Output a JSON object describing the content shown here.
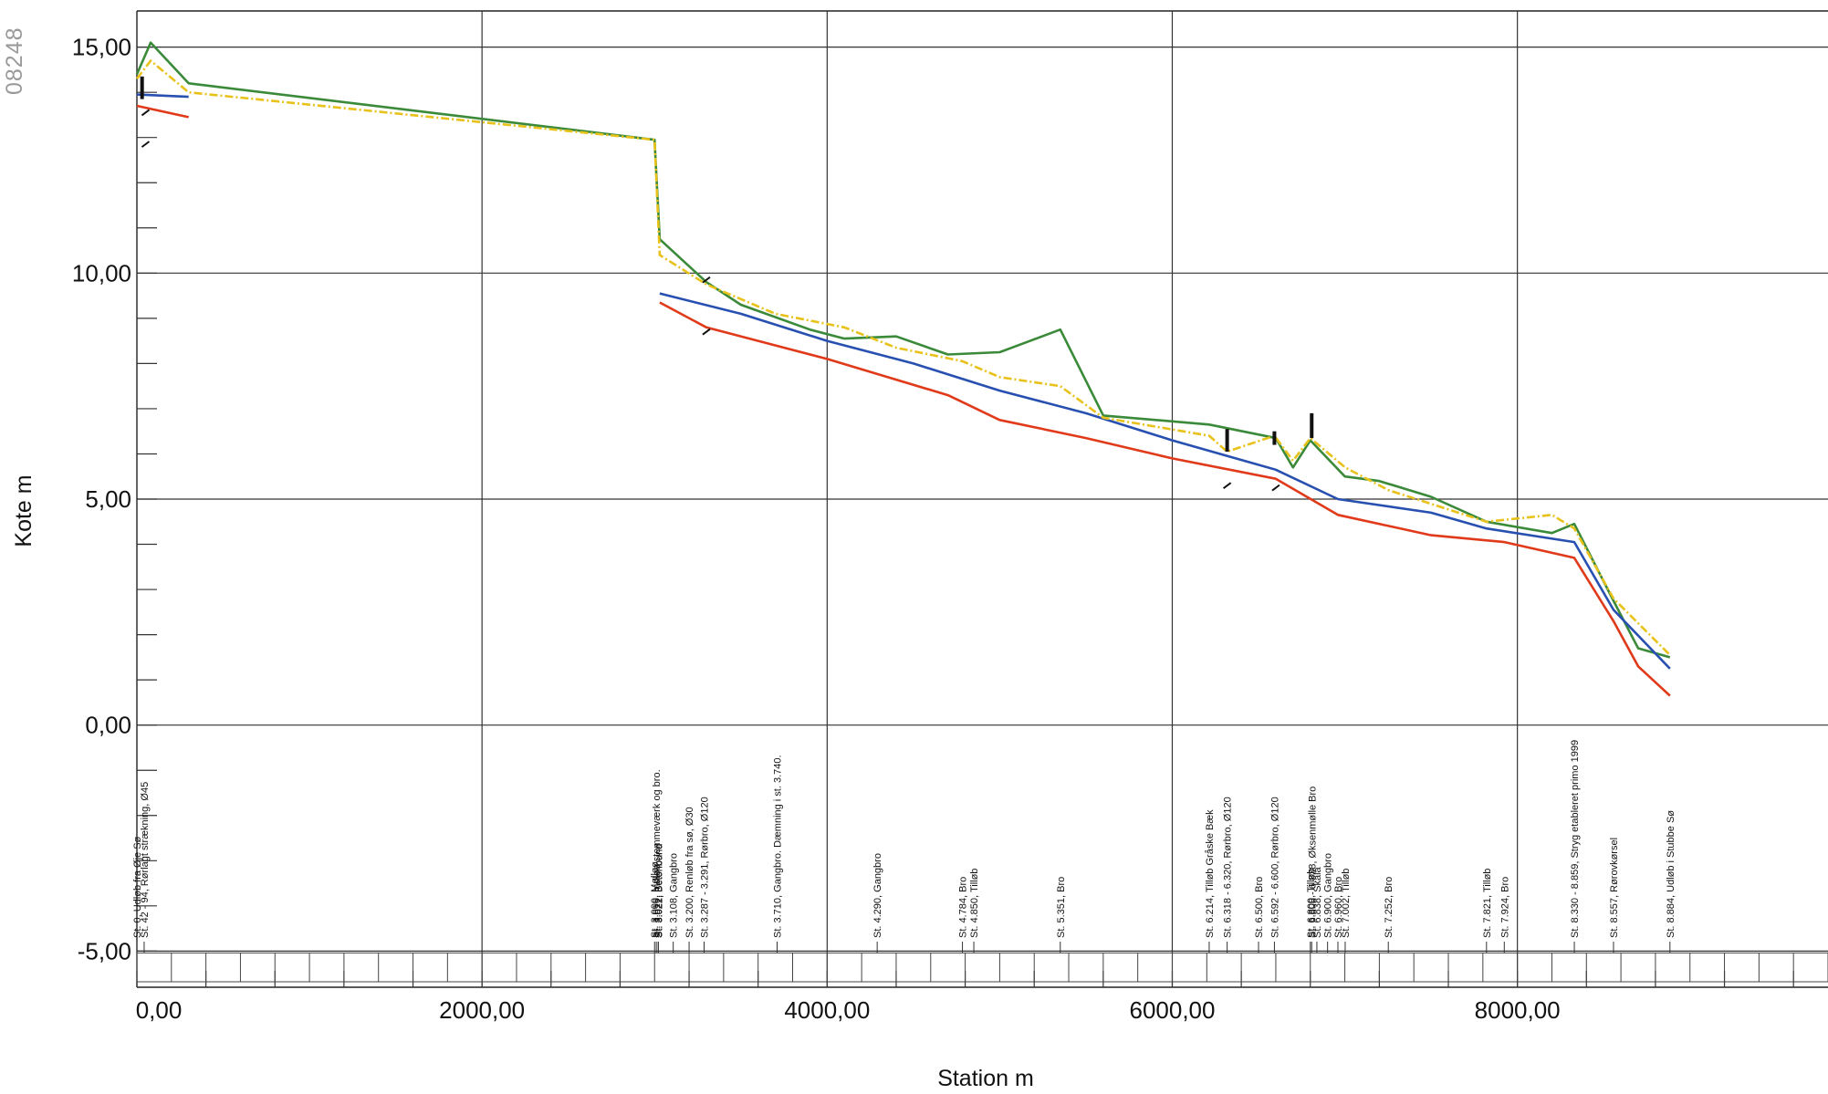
{
  "stamp": "08248",
  "chart_data": {
    "type": "line",
    "title": "",
    "xlabel": "Station m",
    "ylabel": "Kote m",
    "xlim": [
      0,
      9800
    ],
    "ylim": [
      -5.8,
      15.8
    ],
    "grid": true,
    "x_ticks": [
      0,
      2000,
      4000,
      6000,
      8000
    ],
    "x_tick_labels": [
      "0,00",
      "2000,00",
      "4000,00",
      "6000,00",
      "8000,00"
    ],
    "y_ticks": [
      -5,
      0,
      5,
      10,
      15
    ],
    "y_tick_labels": [
      "-5,00",
      "0,00",
      "5,00",
      "10,00",
      "15,00"
    ],
    "series": [
      {
        "color": "#3a8a3a",
        "segments": [
          [
            [
              0,
              14.4
            ],
            [
              80,
              15.1
            ],
            [
              300,
              14.2
            ],
            [
              3000,
              12.95
            ],
            [
              3030,
              10.75
            ],
            [
              3300,
              9.8
            ],
            [
              3500,
              9.3
            ],
            [
              3900,
              8.75
            ],
            [
              4100,
              8.55
            ],
            [
              4400,
              8.6
            ],
            [
              4700,
              8.2
            ],
            [
              5000,
              8.25
            ],
            [
              5351,
              8.75
            ],
            [
              5600,
              6.85
            ],
            [
              6214,
              6.65
            ],
            [
              6600,
              6.35
            ],
            [
              6700,
              5.7
            ],
            [
              6800,
              6.3
            ],
            [
              7000,
              5.5
            ],
            [
              7200,
              5.4
            ],
            [
              7500,
              5.05
            ],
            [
              7821,
              4.5
            ],
            [
              8200,
              4.25
            ],
            [
              8330,
              4.45
            ],
            [
              8557,
              2.75
            ],
            [
              8700,
              1.7
            ],
            [
              8884,
              1.5
            ]
          ]
        ]
      },
      {
        "color": "#2850b0",
        "segments": [
          [
            [
              0,
              13.95
            ],
            [
              300,
              13.9
            ]
          ],
          [
            [
              3030,
              9.55
            ],
            [
              3500,
              9.1
            ],
            [
              4000,
              8.5
            ],
            [
              4500,
              8.0
            ],
            [
              5000,
              7.4
            ],
            [
              5500,
              6.9
            ],
            [
              6000,
              6.3
            ],
            [
              6600,
              5.65
            ],
            [
              6960,
              5.0
            ],
            [
              7500,
              4.7
            ],
            [
              7821,
              4.35
            ],
            [
              8330,
              4.05
            ],
            [
              8557,
              2.55
            ],
            [
              8884,
              1.25
            ]
          ]
        ]
      },
      {
        "color": "#e03a1a",
        "segments": [
          [
            [
              0,
              13.7
            ],
            [
              300,
              13.45
            ]
          ],
          [
            [
              3030,
              9.35
            ],
            [
              3300,
              8.8
            ],
            [
              4000,
              8.1
            ],
            [
              4700,
              7.3
            ],
            [
              5000,
              6.75
            ],
            [
              5500,
              6.35
            ],
            [
              6000,
              5.9
            ],
            [
              6600,
              5.45
            ],
            [
              6960,
              4.65
            ],
            [
              7500,
              4.2
            ],
            [
              7924,
              4.05
            ],
            [
              8330,
              3.7
            ],
            [
              8557,
              2.3
            ],
            [
              8700,
              1.3
            ],
            [
              8884,
              0.65
            ]
          ]
        ]
      },
      {
        "color": "#e8c21a",
        "dashed": true,
        "segments": [
          [
            [
              0,
              14.3
            ],
            [
              80,
              14.7
            ],
            [
              300,
              14.0
            ],
            [
              3000,
              12.95
            ],
            [
              3030,
              10.4
            ],
            [
              3300,
              9.75
            ],
            [
              3700,
              9.1
            ],
            [
              4100,
              8.8
            ],
            [
              4400,
              8.35
            ],
            [
              4784,
              8.05
            ],
            [
              5000,
              7.7
            ],
            [
              5351,
              7.5
            ],
            [
              5600,
              6.8
            ],
            [
              6214,
              6.4
            ],
            [
              6318,
              6.05
            ],
            [
              6592,
              6.4
            ],
            [
              6700,
              5.85
            ],
            [
              6800,
              6.35
            ],
            [
              7002,
              5.7
            ],
            [
              7252,
              5.2
            ],
            [
              7821,
              4.5
            ],
            [
              8200,
              4.65
            ],
            [
              8330,
              4.35
            ],
            [
              8557,
              2.8
            ],
            [
              8884,
              1.55
            ]
          ]
        ]
      }
    ],
    "bars": [
      {
        "x": 30,
        "y0": 13.85,
        "y1": 14.35
      },
      {
        "x": 6318,
        "y0": 6.05,
        "y1": 6.55
      },
      {
        "x": 6592,
        "y0": 6.2,
        "y1": 6.5
      },
      {
        "x": 6808,
        "y0": 6.35,
        "y1": 6.9
      }
    ],
    "small_marks": [
      {
        "x": 50,
        "y": 13.55
      },
      {
        "x": 50,
        "y": 12.85
      },
      {
        "x": 3300,
        "y": 9.85
      },
      {
        "x": 3300,
        "y": 8.7
      },
      {
        "x": 6318,
        "y": 5.3
      },
      {
        "x": 6600,
        "y": 5.25
      }
    ],
    "annotations": [
      {
        "x": 0,
        "text": "St. 0, Udløb fra Øje Sø"
      },
      {
        "x": 42,
        "text": "St. 42 - 94, Rørlagt strækning, Ø45"
      },
      {
        "x": 3000,
        "text": "St. 3.000, Mølleø"
      },
      {
        "x": 3010,
        "text": "St. 3.010, Indløb stemmeværk og bro."
      },
      {
        "x": 3021,
        "text": "St. 3.021, Betonbund"
      },
      {
        "x": 3022,
        "text": "St. 3.022, Betonbund"
      },
      {
        "x": 3108,
        "text": "St. 3.108, Gangbro"
      },
      {
        "x": 3200,
        "text": "St. 3.200, Renløb fra sø, Ø30"
      },
      {
        "x": 3287,
        "text": "St. 3.287 - 3.291, Rørbro, Ø120"
      },
      {
        "x": 3710,
        "text": "St. 3.710, Gangbro. Dæmning i st. 3.740."
      },
      {
        "x": 4290,
        "text": "St. 4.290, Gangbro"
      },
      {
        "x": 4784,
        "text": "St. 4.784, Bro"
      },
      {
        "x": 4850,
        "text": "St. 4.850, Tilløb"
      },
      {
        "x": 5351,
        "text": "St. 5.351, Bro"
      },
      {
        "x": 6214,
        "text": "St. 6.214, Tilløb Gråske Bæk"
      },
      {
        "x": 6318,
        "text": "St. 6.318 - 6.320, Rørbro, Ø120"
      },
      {
        "x": 6500,
        "text": "St. 6.500, Bro"
      },
      {
        "x": 6592,
        "text": "St. 6.592 - 6.600, Rørbro, Ø120"
      },
      {
        "x": 6800,
        "text": "St. 6.800, Tilløb"
      },
      {
        "x": 6808,
        "text": "St. 6.808 - 6.838, Øksenmølle Bro"
      },
      {
        "x": 6838,
        "text": "St. 6.838, Skala"
      },
      {
        "x": 6900,
        "text": "St. 6.900, Gangbro"
      },
      {
        "x": 6960,
        "text": "St. 6.960, Bro"
      },
      {
        "x": 7002,
        "text": "St. 7.002, Tilløb"
      },
      {
        "x": 7252,
        "text": "St. 7.252, Bro"
      },
      {
        "x": 7821,
        "text": "St. 7.821, Tilløb"
      },
      {
        "x": 7924,
        "text": "St. 7.924, Bro"
      },
      {
        "x": 8330,
        "text": "St. 8.330 - 8.859, Stryg etableret primo 1999"
      },
      {
        "x": 8557,
        "text": "St. 8.557, Rørovkørsel"
      },
      {
        "x": 8884,
        "text": "St. 8.884, Udløb i Stubbe Sø"
      }
    ]
  }
}
